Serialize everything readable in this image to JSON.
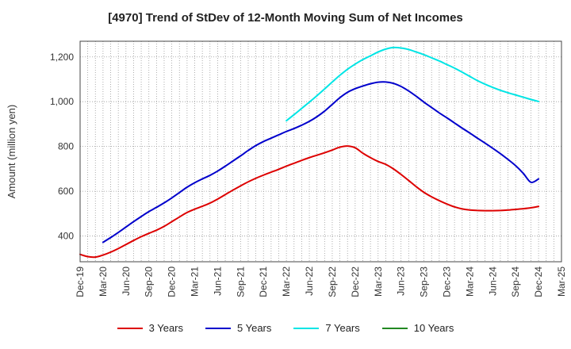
{
  "chart_data": {
    "type": "line",
    "title": "[4970]  Trend of StDev of 12-Month Moving Sum of Net Incomes",
    "xlabel": "",
    "ylabel": "Amount (million yen)",
    "ylim": [
      285,
      1270
    ],
    "y_ticks": [
      400,
      600,
      800,
      1000,
      1200
    ],
    "y_tick_labels": [
      "400",
      "600",
      "800",
      "1,000",
      "1,200"
    ],
    "x_tick_labels": [
      "Dec-19",
      "Mar-20",
      "Jun-20",
      "Sep-20",
      "Dec-20",
      "Mar-21",
      "Jun-21",
      "Sep-21",
      "Dec-21",
      "Mar-22",
      "Jun-22",
      "Sep-22",
      "Dec-22",
      "Mar-23",
      "Jun-23",
      "Sep-23",
      "Dec-23",
      "Mar-24",
      "Jun-24",
      "Sep-24",
      "Dec-24",
      "Mar-25"
    ],
    "grid": true,
    "legend_position": "bottom",
    "series": [
      {
        "name": "3 Years",
        "color": "#dd0000",
        "points": [
          [
            "Dec-19",
            318
          ],
          [
            "Jan-20",
            308
          ],
          [
            "Feb-20",
            306
          ],
          [
            "Mar-20",
            315
          ],
          [
            "Apr-20",
            328
          ],
          [
            "May-20",
            344
          ],
          [
            "Jun-20",
            362
          ],
          [
            "Jul-20",
            380
          ],
          [
            "Aug-20",
            397
          ],
          [
            "Sep-20",
            412
          ],
          [
            "Oct-20",
            426
          ],
          [
            "Nov-20",
            443
          ],
          [
            "Dec-20",
            464
          ],
          [
            "Jan-21",
            485
          ],
          [
            "Feb-21",
            505
          ],
          [
            "Mar-21",
            520
          ],
          [
            "Apr-21",
            533
          ],
          [
            "May-21",
            547
          ],
          [
            "Jun-21",
            565
          ],
          [
            "Jul-21",
            585
          ],
          [
            "Aug-21",
            605
          ],
          [
            "Sep-21",
            624
          ],
          [
            "Oct-21",
            642
          ],
          [
            "Nov-21",
            658
          ],
          [
            "Dec-21",
            672
          ],
          [
            "Jan-22",
            685
          ],
          [
            "Feb-22",
            698
          ],
          [
            "Mar-22",
            712
          ],
          [
            "Apr-22",
            725
          ],
          [
            "May-22",
            738
          ],
          [
            "Jun-22",
            750
          ],
          [
            "Jul-22",
            761
          ],
          [
            "Aug-22",
            772
          ],
          [
            "Sep-22",
            784
          ],
          [
            "Oct-22",
            797
          ],
          [
            "Nov-22",
            802
          ],
          [
            "Dec-22",
            794
          ],
          [
            "Jan-23",
            770
          ],
          [
            "Feb-23",
            750
          ],
          [
            "Mar-23",
            733
          ],
          [
            "Apr-23",
            720
          ],
          [
            "May-23",
            700
          ],
          [
            "Jun-23",
            675
          ],
          [
            "Jul-23",
            648
          ],
          [
            "Aug-23",
            620
          ],
          [
            "Sep-23",
            595
          ],
          [
            "Oct-23",
            575
          ],
          [
            "Nov-23",
            558
          ],
          [
            "Dec-23",
            543
          ],
          [
            "Jan-24",
            530
          ],
          [
            "Feb-24",
            521
          ],
          [
            "Mar-24",
            516
          ],
          [
            "Apr-24",
            514
          ],
          [
            "May-24",
            513
          ],
          [
            "Jun-24",
            513
          ],
          [
            "Jul-24",
            514
          ],
          [
            "Aug-24",
            516
          ],
          [
            "Sep-24",
            519
          ],
          [
            "Oct-24",
            522
          ],
          [
            "Nov-24",
            526
          ],
          [
            "Dec-24",
            532
          ]
        ]
      },
      {
        "name": "5 Years",
        "color": "#0000cc",
        "points": [
          [
            "Mar-20",
            372
          ],
          [
            "Apr-20",
            393
          ],
          [
            "May-20",
            416
          ],
          [
            "Jun-20",
            440
          ],
          [
            "Jul-20",
            464
          ],
          [
            "Aug-20",
            487
          ],
          [
            "Sep-20",
            509
          ],
          [
            "Oct-20",
            528
          ],
          [
            "Nov-20",
            548
          ],
          [
            "Dec-20",
            570
          ],
          [
            "Jan-21",
            594
          ],
          [
            "Feb-21",
            618
          ],
          [
            "Mar-21",
            638
          ],
          [
            "Apr-21",
            655
          ],
          [
            "May-21",
            671
          ],
          [
            "Jun-21",
            690
          ],
          [
            "Jul-21",
            712
          ],
          [
            "Aug-21",
            735
          ],
          [
            "Sep-21",
            758
          ],
          [
            "Oct-21",
            782
          ],
          [
            "Nov-21",
            804
          ],
          [
            "Dec-21",
            822
          ],
          [
            "Jan-22",
            837
          ],
          [
            "Feb-22",
            852
          ],
          [
            "Mar-22",
            867
          ],
          [
            "Apr-22",
            880
          ],
          [
            "May-22",
            895
          ],
          [
            "Jun-22",
            912
          ],
          [
            "Jul-22",
            933
          ],
          [
            "Aug-22",
            958
          ],
          [
            "Sep-22",
            988
          ],
          [
            "Oct-22",
            1018
          ],
          [
            "Nov-22",
            1042
          ],
          [
            "Dec-22",
            1058
          ],
          [
            "Jan-23",
            1070
          ],
          [
            "Feb-23",
            1080
          ],
          [
            "Mar-23",
            1087
          ],
          [
            "Apr-23",
            1088
          ],
          [
            "May-23",
            1082
          ],
          [
            "Jun-23",
            1068
          ],
          [
            "Jul-23",
            1048
          ],
          [
            "Aug-23",
            1024
          ],
          [
            "Sep-23",
            998
          ],
          [
            "Oct-23",
            974
          ],
          [
            "Nov-23",
            950
          ],
          [
            "Dec-23",
            928
          ],
          [
            "Jan-24",
            905
          ],
          [
            "Feb-24",
            882
          ],
          [
            "Mar-24",
            860
          ],
          [
            "Apr-24",
            837
          ],
          [
            "May-24",
            815
          ],
          [
            "Jun-24",
            792
          ],
          [
            "Jul-24",
            768
          ],
          [
            "Aug-24",
            742
          ],
          [
            "Sep-24",
            714
          ],
          [
            "Oct-24",
            680
          ],
          [
            "Nov-24",
            640
          ],
          [
            "Dec-24",
            655
          ]
        ]
      },
      {
        "name": "7 Years",
        "color": "#00e5e5",
        "points": [
          [
            "Mar-22",
            915
          ],
          [
            "Apr-22",
            942
          ],
          [
            "May-22",
            970
          ],
          [
            "Jun-22",
            998
          ],
          [
            "Jul-22",
            1027
          ],
          [
            "Aug-22",
            1057
          ],
          [
            "Sep-22",
            1088
          ],
          [
            "Oct-22",
            1118
          ],
          [
            "Nov-22",
            1145
          ],
          [
            "Dec-22",
            1168
          ],
          [
            "Jan-23",
            1188
          ],
          [
            "Feb-23",
            1205
          ],
          [
            "Mar-23",
            1222
          ],
          [
            "Apr-23",
            1235
          ],
          [
            "May-23",
            1242
          ],
          [
            "Jun-23",
            1240
          ],
          [
            "Jul-23",
            1233
          ],
          [
            "Aug-23",
            1222
          ],
          [
            "Sep-23",
            1210
          ],
          [
            "Oct-23",
            1196
          ],
          [
            "Nov-23",
            1182
          ],
          [
            "Dec-23",
            1166
          ],
          [
            "Jan-24",
            1150
          ],
          [
            "Feb-24",
            1132
          ],
          [
            "Mar-24",
            1113
          ],
          [
            "Apr-24",
            1094
          ],
          [
            "May-24",
            1078
          ],
          [
            "Jun-24",
            1064
          ],
          [
            "Jul-24",
            1051
          ],
          [
            "Aug-24",
            1040
          ],
          [
            "Sep-24",
            1030
          ],
          [
            "Oct-24",
            1020
          ],
          [
            "Nov-24",
            1010
          ],
          [
            "Dec-24",
            1001
          ]
        ]
      },
      {
        "name": "10 Years",
        "color": "#228822",
        "points": []
      }
    ]
  }
}
